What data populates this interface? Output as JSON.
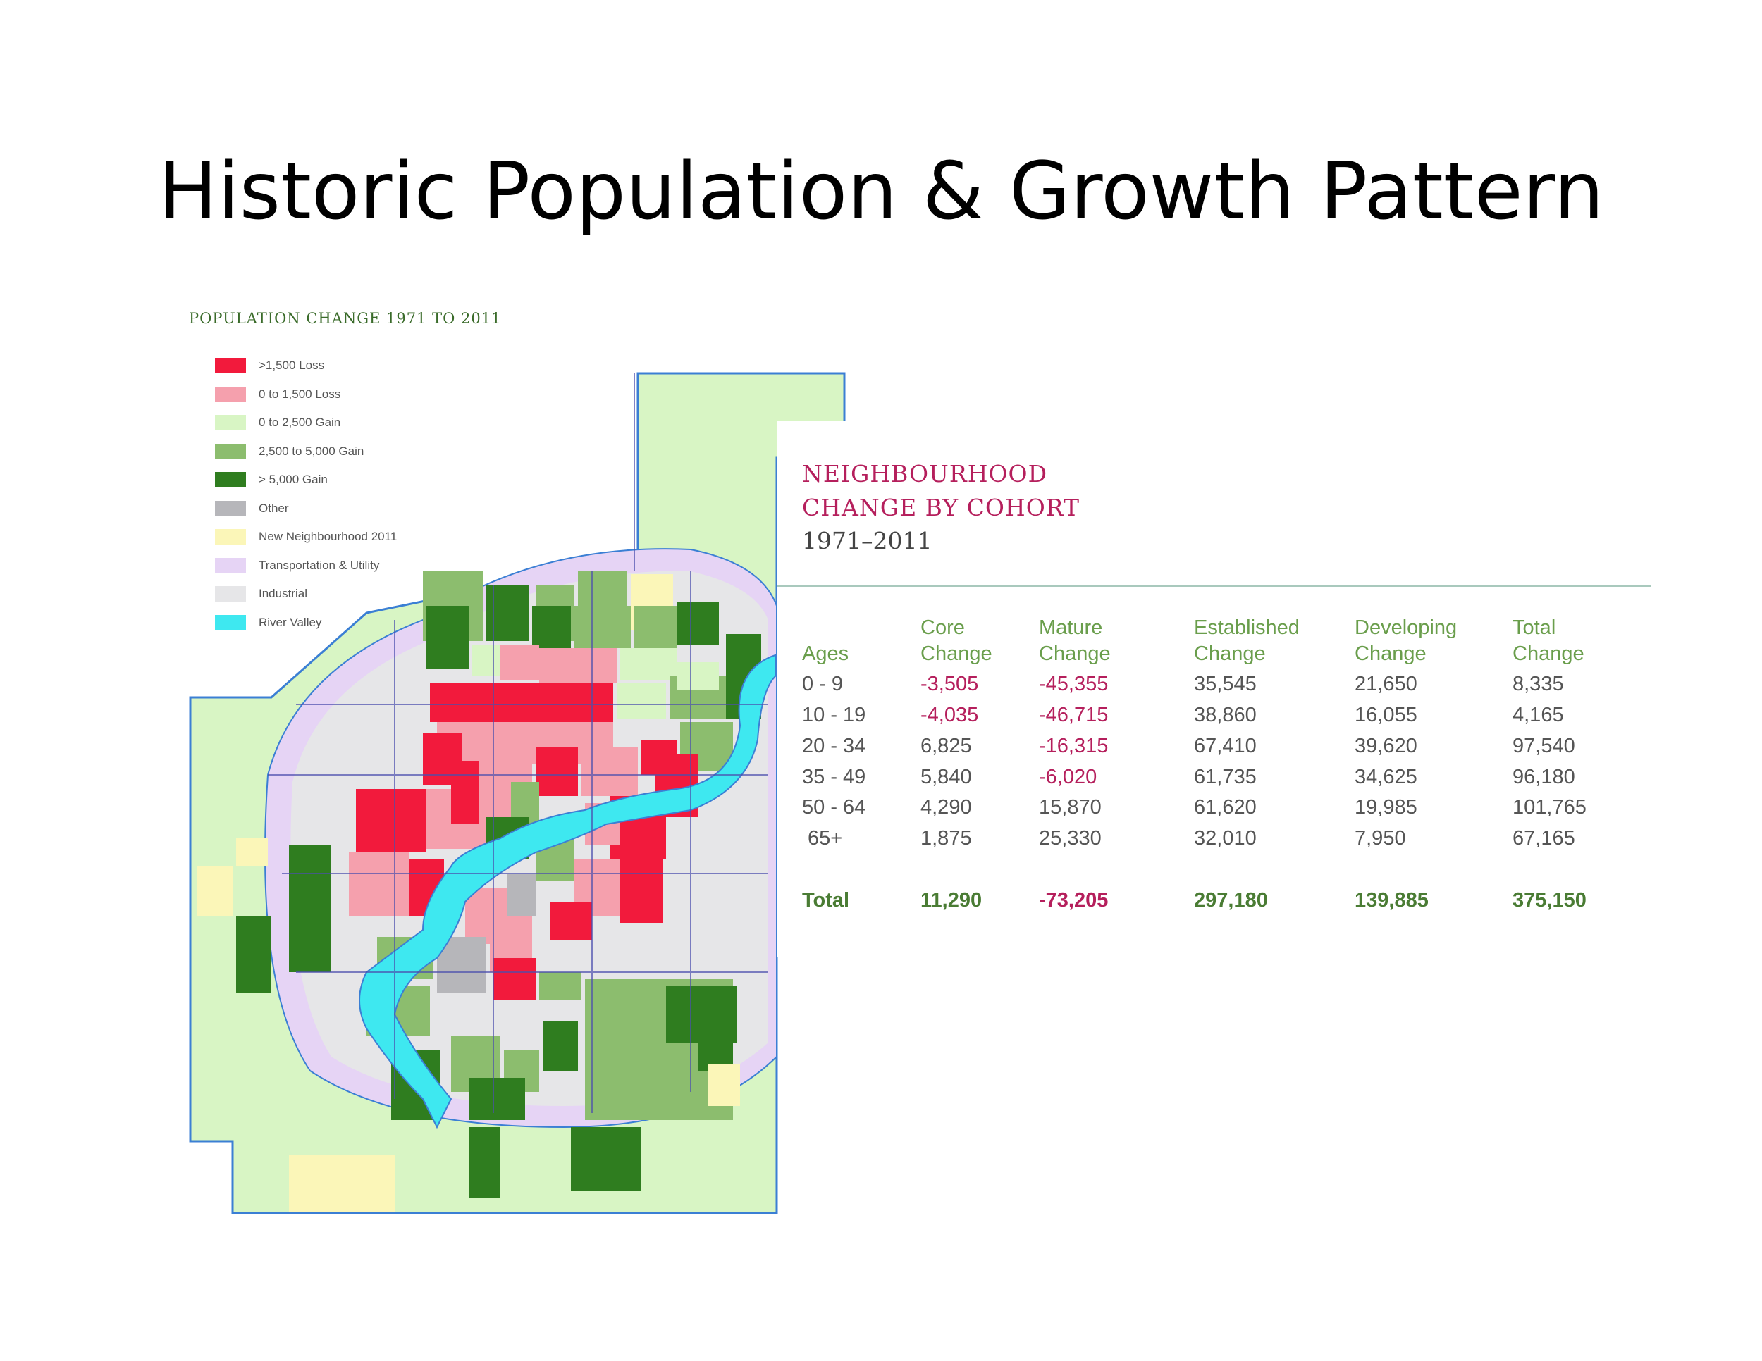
{
  "slide": {
    "title": "Historic Population & Growth Pattern"
  },
  "map": {
    "heading": "POPULATION CHANGE 1971 TO 2011",
    "legend": [
      {
        "label": ">1,500 Loss",
        "color": "#f21a3c"
      },
      {
        "label": "0 to 1,500 Loss",
        "color": "#f5a0ad"
      },
      {
        "label": "0 to 2,500 Gain",
        "color": "#d8f5c4"
      },
      {
        "label": "2,500 to 5,000 Gain",
        "color": "#8cbd6e"
      },
      {
        "label": "> 5,000 Gain",
        "color": "#2f7d1f"
      },
      {
        "label": "Other",
        "color": "#b6b6ba"
      },
      {
        "label": "New Neighbourhood 2011",
        "color": "#fbf6b8"
      },
      {
        "label": "Transportation & Utility",
        "color": "#e6d4f5"
      },
      {
        "label": "Industrial",
        "color": "#e6e6e8"
      },
      {
        "label": "River Valley",
        "color": "#3ee8f0"
      }
    ],
    "boundary_color": "#3b7fd4",
    "road_color": "#4b4fae"
  },
  "table": {
    "title_lines": [
      "NEIGHBOURHOOD",
      "CHANGE BY COHORT"
    ],
    "years": "1971–2011",
    "columns": [
      {
        "line1": "",
        "line2": "Ages"
      },
      {
        "line1": "Core",
        "line2": "Change"
      },
      {
        "line1": "Mature",
        "line2": "Change"
      },
      {
        "line1": "Established",
        "line2": "Change"
      },
      {
        "line1": "Developing",
        "line2": "Change"
      },
      {
        "line1": "Total",
        "line2": "Change"
      }
    ],
    "rows": [
      [
        "0 - 9",
        "-3,505",
        "-45,355",
        "35,545",
        "21,650",
        "8,335"
      ],
      [
        "10 - 19",
        "-4,035",
        "-46,715",
        "38,860",
        "16,055",
        "4,165"
      ],
      [
        "20 - 34",
        "6,825",
        "-16,315",
        "67,410",
        "39,620",
        "97,540"
      ],
      [
        "35 - 49",
        "5,840",
        "-6,020",
        "61,735",
        "34,625",
        "96,180"
      ],
      [
        "50 - 64",
        "4,290",
        "15,870",
        "61,620",
        "19,985",
        "101,765"
      ],
      [
        "65+",
        "1,875",
        "25,330",
        "32,010",
        "7,950",
        "67,165"
      ]
    ],
    "total_row": [
      "Total",
      "11,290",
      "-73,205",
      "297,180",
      "139,885",
      "375,150"
    ]
  }
}
